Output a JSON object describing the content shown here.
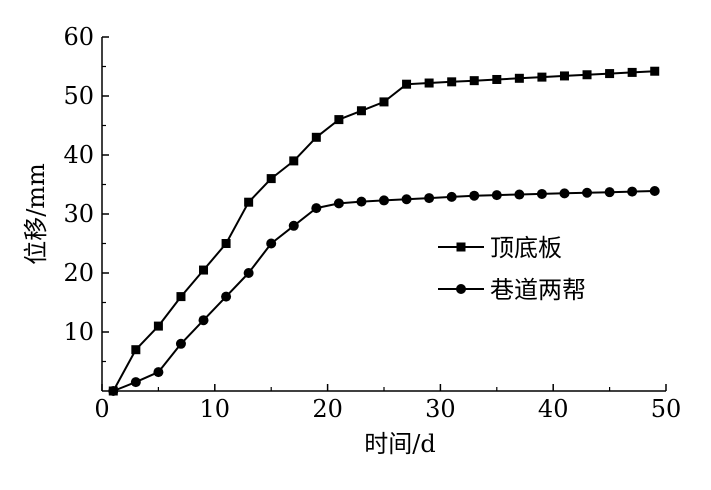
{
  "chart_data": {
    "type": "line",
    "title": "",
    "xlabel": "时间/d",
    "ylabel": "位移/mm",
    "xlim": [
      0,
      50
    ],
    "ylim": [
      0,
      60
    ],
    "xticks": [
      0,
      10,
      20,
      30,
      40,
      50
    ],
    "yticks": [
      10,
      20,
      30,
      40,
      50,
      60
    ],
    "grid": false,
    "legend_position": "center-right",
    "series": [
      {
        "name": "顶底板",
        "marker": "square",
        "color": "#000000",
        "x": [
          1,
          3,
          5,
          7,
          9,
          11,
          13,
          15,
          17,
          19,
          21,
          23,
          25,
          27,
          29,
          31,
          33,
          35,
          37,
          39,
          41,
          43,
          45,
          47,
          49
        ],
        "y": [
          0,
          7,
          11,
          16,
          20.5,
          25,
          32,
          36,
          39,
          43,
          46,
          47.5,
          49,
          52,
          52.2,
          52.4,
          52.6,
          52.8,
          53,
          53.2,
          53.4,
          53.6,
          53.8,
          54,
          54.2
        ]
      },
      {
        "name": "巷道两帮",
        "marker": "circle",
        "color": "#000000",
        "x": [
          1,
          3,
          5,
          7,
          9,
          11,
          13,
          15,
          17,
          19,
          21,
          23,
          25,
          27,
          29,
          31,
          33,
          35,
          37,
          39,
          41,
          43,
          45,
          47,
          49
        ],
        "y": [
          0,
          1.5,
          3.2,
          8,
          12,
          16,
          20,
          25,
          28,
          31,
          31.8,
          32.1,
          32.3,
          32.5,
          32.7,
          32.9,
          33.1,
          33.2,
          33.3,
          33.4,
          33.5,
          33.6,
          33.7,
          33.8,
          33.9
        ]
      }
    ]
  }
}
